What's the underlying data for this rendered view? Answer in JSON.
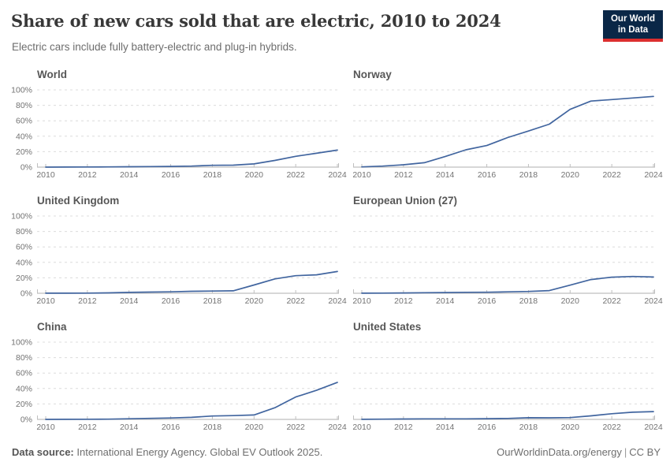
{
  "header": {
    "title": "Share of new cars sold that are electric, 2010 to 2024",
    "subtitle": "Electric cars include fully battery-electric and plug-in hybrids.",
    "logo": {
      "line1": "Our World",
      "line2": "in Data",
      "bg_color": "#0a2747",
      "accent_color": "#dc2f2f"
    }
  },
  "chart_data": {
    "type": "line",
    "title": "Share of new cars sold that are electric, 2010 to 2024",
    "x": [
      2010,
      2011,
      2012,
      2013,
      2014,
      2015,
      2016,
      2017,
      2018,
      2019,
      2020,
      2021,
      2022,
      2023,
      2024
    ],
    "x_ticks": [
      2010,
      2012,
      2014,
      2016,
      2018,
      2020,
      2022,
      2024
    ],
    "ylim": [
      0,
      100
    ],
    "y_ticks": [
      0,
      20,
      40,
      60,
      80,
      100
    ],
    "y_tick_suffix": "%",
    "grid": "horizontal-dashed",
    "legend": "none (facet titles)",
    "line_color": "#41659f",
    "grid_color": "#dcdcdc",
    "axis_color": "#bfbfbf",
    "facets": [
      {
        "title": "World",
        "show_y_labels": true,
        "values": [
          0.0,
          0.1,
          0.2,
          0.3,
          0.5,
          0.7,
          0.9,
          1.3,
          2.3,
          2.5,
          4.2,
          8.7,
          14.0,
          18.0,
          22.0
        ]
      },
      {
        "title": "Norway",
        "show_y_labels": false,
        "values": [
          0.3,
          1.3,
          3.1,
          5.7,
          13.7,
          22.4,
          28.0,
          38.3,
          46.7,
          55.6,
          74.8,
          85.5,
          87.5,
          89.5,
          91.5
        ]
      },
      {
        "title": "United Kingdom",
        "show_y_labels": true,
        "values": [
          0.1,
          0.1,
          0.2,
          0.5,
          1.1,
          1.5,
          1.8,
          2.5,
          2.9,
          3.2,
          10.7,
          18.6,
          22.8,
          23.9,
          28.2
        ]
      },
      {
        "title": "European Union (27)",
        "show_y_labels": false,
        "values": [
          0.1,
          0.2,
          0.4,
          0.7,
          0.9,
          1.2,
          1.3,
          1.8,
          2.3,
          3.5,
          10.5,
          17.8,
          20.8,
          21.7,
          21.0
        ]
      },
      {
        "title": "China",
        "show_y_labels": true,
        "values": [
          0.0,
          0.1,
          0.2,
          0.3,
          0.8,
          1.3,
          1.8,
          2.7,
          4.4,
          4.9,
          5.7,
          15.1,
          29.0,
          37.7,
          47.9
        ]
      },
      {
        "title": "United States",
        "show_y_labels": false,
        "values": [
          0.1,
          0.3,
          0.5,
          0.7,
          0.7,
          0.7,
          0.9,
          1.2,
          2.1,
          2.0,
          2.3,
          4.6,
          7.3,
          9.3,
          10.1
        ]
      }
    ]
  },
  "footer": {
    "data_source_label": "Data source:",
    "data_source_text": "International Energy Agency. Global EV Outlook 2025.",
    "site": "OurWorldinData.org/energy",
    "separator": "|",
    "license": "CC BY"
  }
}
